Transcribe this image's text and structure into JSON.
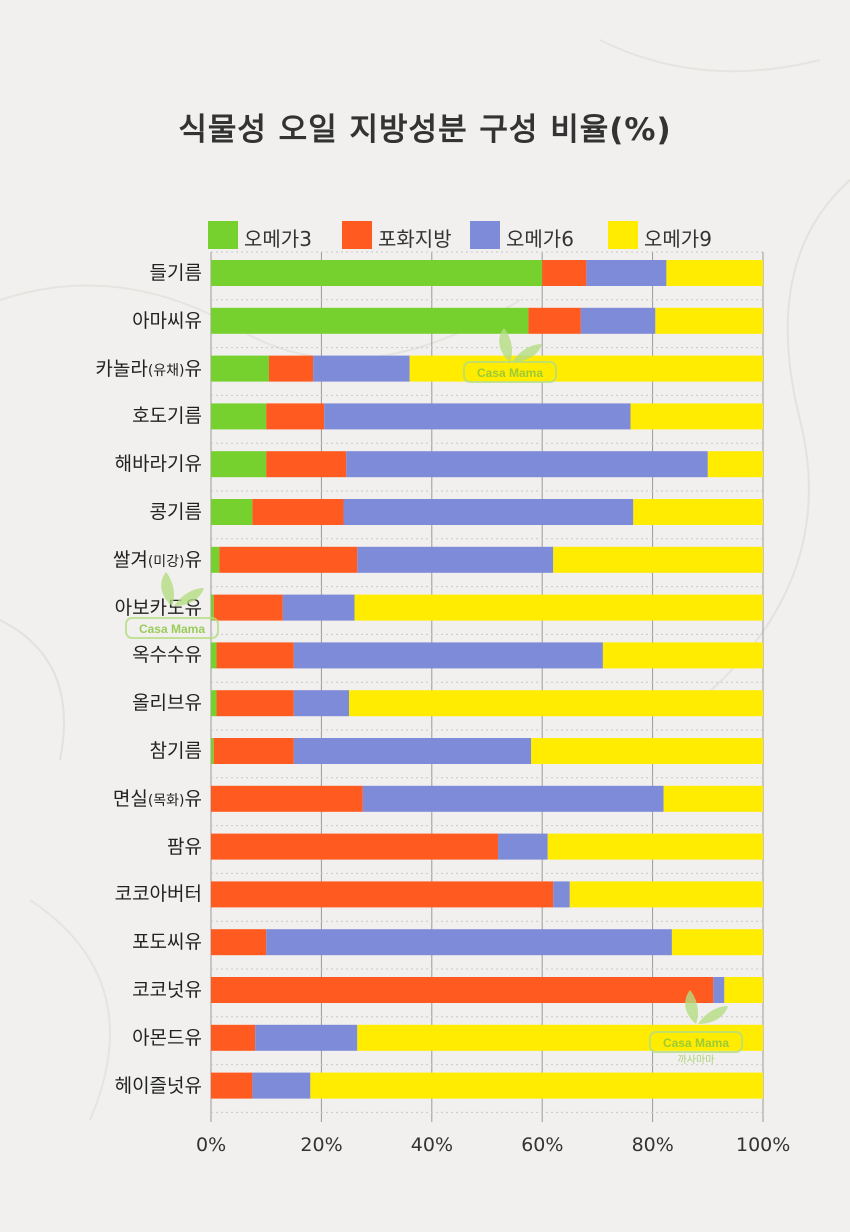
{
  "chart_data": {
    "type": "bar",
    "orientation": "horizontal",
    "stacked": true,
    "title": "식물성 오일 지방성분 구성 비율(%)",
    "categories": [
      {
        "main": "들기름",
        "sub": "",
        "tail": ""
      },
      {
        "main": "아마씨유",
        "sub": "",
        "tail": ""
      },
      {
        "main": "카놀라",
        "sub": "(유채)",
        "tail": "유"
      },
      {
        "main": "호도기름",
        "sub": "",
        "tail": ""
      },
      {
        "main": "해바라기유",
        "sub": "",
        "tail": ""
      },
      {
        "main": "콩기름",
        "sub": "",
        "tail": ""
      },
      {
        "main": "쌀겨",
        "sub": "(미강)",
        "tail": "유"
      },
      {
        "main": "아보카도유",
        "sub": "",
        "tail": ""
      },
      {
        "main": "옥수수유",
        "sub": "",
        "tail": ""
      },
      {
        "main": "올리브유",
        "sub": "",
        "tail": ""
      },
      {
        "main": "참기름",
        "sub": "",
        "tail": ""
      },
      {
        "main": "면실",
        "sub": "(목화)",
        "tail": "유"
      },
      {
        "main": "팜유",
        "sub": "",
        "tail": ""
      },
      {
        "main": "코코아버터",
        "sub": "",
        "tail": ""
      },
      {
        "main": "포도씨유",
        "sub": "",
        "tail": ""
      },
      {
        "main": "코코넛유",
        "sub": "",
        "tail": ""
      },
      {
        "main": "아몬드유",
        "sub": "",
        "tail": ""
      },
      {
        "main": "헤이즐넛유",
        "sub": "",
        "tail": ""
      }
    ],
    "series": [
      {
        "name": "오메가3",
        "color": "#76d12e",
        "values": [
          60,
          57.5,
          10.5,
          10,
          10,
          7.5,
          1.5,
          0.5,
          1,
          1,
          0.5,
          0,
          0,
          0,
          0,
          0,
          0,
          0
        ]
      },
      {
        "name": "포화지방",
        "color": "#ff5a1f",
        "values": [
          8,
          9.5,
          8,
          10.5,
          14.5,
          16.5,
          25,
          12.5,
          14,
          14,
          14.5,
          27.5,
          52,
          62,
          10,
          91,
          8,
          7.5
        ]
      },
      {
        "name": "오메가6",
        "color": "#7d8bd8",
        "values": [
          14.5,
          13.5,
          17.5,
          55.5,
          65.5,
          52.5,
          35.5,
          13,
          56,
          10,
          43,
          54.5,
          9,
          3,
          73.5,
          2,
          18.5,
          10.5
        ]
      },
      {
        "name": "오메가9",
        "color": "#ffec00",
        "values": [
          17.5,
          19.5,
          64,
          24,
          10,
          23.5,
          38,
          74,
          29,
          75,
          42,
          18,
          39,
          35,
          16.5,
          7,
          73.5,
          82
        ]
      }
    ],
    "xlim": [
      0,
      100
    ],
    "x_ticks": [
      "0%",
      "20%",
      "40%",
      "60%",
      "80%",
      "100%"
    ],
    "grid": true,
    "legend_position": "top"
  },
  "watermark": {
    "en": "Casa Mama",
    "ko": "까사마마",
    "color": "#8cc63f"
  }
}
